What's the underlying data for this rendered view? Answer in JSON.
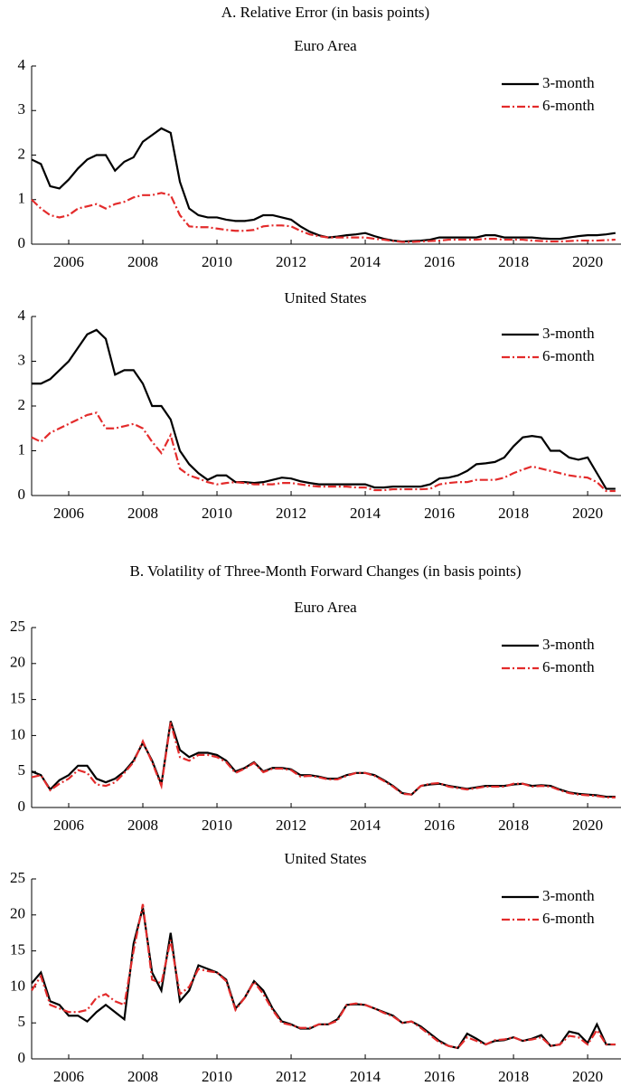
{
  "sections": [
    {
      "title": "A. Relative Error (in basis points)"
    },
    {
      "title": "B. Volatility of Three-Month Forward Changes (in basis points)"
    }
  ],
  "chart_data": [
    {
      "type": "line",
      "title": "Euro Area",
      "x": [
        2005,
        2005.25,
        2005.5,
        2005.75,
        2006,
        2006.25,
        2006.5,
        2006.75,
        2007,
        2007.25,
        2007.5,
        2007.75,
        2008,
        2008.25,
        2008.5,
        2008.75,
        2009,
        2009.25,
        2009.5,
        2009.75,
        2010,
        2010.25,
        2010.5,
        2010.75,
        2011,
        2011.25,
        2011.5,
        2011.75,
        2012,
        2012.25,
        2012.5,
        2012.75,
        2013,
        2013.25,
        2013.5,
        2013.75,
        2014,
        2014.25,
        2014.5,
        2014.75,
        2015,
        2015.25,
        2015.5,
        2015.75,
        2016,
        2016.25,
        2016.5,
        2016.75,
        2017,
        2017.25,
        2017.5,
        2017.75,
        2018,
        2018.25,
        2018.5,
        2018.75,
        2019,
        2019.25,
        2019.5,
        2019.75,
        2020,
        2020.25,
        2020.5,
        2020.75
      ],
      "series": [
        {
          "name": "3-month",
          "color": "#000000",
          "dash": "solid",
          "values": [
            1.9,
            1.8,
            1.3,
            1.25,
            1.45,
            1.7,
            1.9,
            2.0,
            2.0,
            1.65,
            1.85,
            1.95,
            2.3,
            2.45,
            2.6,
            2.5,
            1.4,
            0.8,
            0.65,
            0.6,
            0.6,
            0.55,
            0.52,
            0.52,
            0.55,
            0.65,
            0.65,
            0.6,
            0.55,
            0.4,
            0.28,
            0.2,
            0.15,
            0.17,
            0.2,
            0.22,
            0.25,
            0.18,
            0.12,
            0.08,
            0.06,
            0.07,
            0.08,
            0.1,
            0.15,
            0.15,
            0.15,
            0.15,
            0.15,
            0.2,
            0.2,
            0.15,
            0.15,
            0.15,
            0.15,
            0.13,
            0.12,
            0.12,
            0.15,
            0.18,
            0.2,
            0.2,
            0.22,
            0.25
          ]
        },
        {
          "name": "6-month",
          "color": "#e32b2b",
          "dash": "dashdot",
          "values": [
            1.0,
            0.8,
            0.65,
            0.6,
            0.65,
            0.8,
            0.85,
            0.9,
            0.8,
            0.9,
            0.95,
            1.05,
            1.1,
            1.1,
            1.15,
            1.1,
            0.65,
            0.4,
            0.38,
            0.38,
            0.35,
            0.32,
            0.3,
            0.3,
            0.32,
            0.4,
            0.42,
            0.42,
            0.4,
            0.3,
            0.22,
            0.18,
            0.15,
            0.15,
            0.15,
            0.15,
            0.15,
            0.12,
            0.1,
            0.07,
            0.05,
            0.05,
            0.06,
            0.07,
            0.08,
            0.1,
            0.1,
            0.1,
            0.1,
            0.12,
            0.12,
            0.1,
            0.1,
            0.1,
            0.08,
            0.07,
            0.06,
            0.06,
            0.07,
            0.08,
            0.08,
            0.08,
            0.09,
            0.1
          ]
        }
      ],
      "xlim": [
        2005,
        2020.9
      ],
      "xticks": [
        2006,
        2008,
        2010,
        2012,
        2014,
        2016,
        2018,
        2020
      ],
      "ylim": [
        0,
        4
      ],
      "yticks": [
        0,
        1,
        2,
        3,
        4
      ],
      "legend": "upper right"
    },
    {
      "type": "line",
      "title": "United States",
      "x": [
        2005,
        2005.25,
        2005.5,
        2005.75,
        2006,
        2006.25,
        2006.5,
        2006.75,
        2007,
        2007.25,
        2007.5,
        2007.75,
        2008,
        2008.25,
        2008.5,
        2008.75,
        2009,
        2009.25,
        2009.5,
        2009.75,
        2010,
        2010.25,
        2010.5,
        2010.75,
        2011,
        2011.25,
        2011.5,
        2011.75,
        2012,
        2012.25,
        2012.5,
        2012.75,
        2013,
        2013.25,
        2013.5,
        2013.75,
        2014,
        2014.25,
        2014.5,
        2014.75,
        2015,
        2015.25,
        2015.5,
        2015.75,
        2016,
        2016.25,
        2016.5,
        2016.75,
        2017,
        2017.25,
        2017.5,
        2017.75,
        2018,
        2018.25,
        2018.5,
        2018.75,
        2019,
        2019.25,
        2019.5,
        2019.75,
        2020,
        2020.25,
        2020.5,
        2020.75
      ],
      "series": [
        {
          "name": "3-month",
          "color": "#000000",
          "dash": "solid",
          "values": [
            2.5,
            2.5,
            2.6,
            2.8,
            3.0,
            3.3,
            3.6,
            3.7,
            3.5,
            2.7,
            2.8,
            2.8,
            2.5,
            2.0,
            2.0,
            1.7,
            1.0,
            0.7,
            0.5,
            0.35,
            0.45,
            0.45,
            0.3,
            0.3,
            0.28,
            0.3,
            0.35,
            0.4,
            0.38,
            0.32,
            0.28,
            0.25,
            0.25,
            0.25,
            0.25,
            0.25,
            0.25,
            0.18,
            0.18,
            0.2,
            0.2,
            0.2,
            0.2,
            0.25,
            0.38,
            0.4,
            0.45,
            0.55,
            0.7,
            0.72,
            0.75,
            0.85,
            1.1,
            1.3,
            1.33,
            1.3,
            1.0,
            1.0,
            0.85,
            0.8,
            0.85,
            0.5,
            0.15,
            0.15
          ]
        },
        {
          "name": "6-month",
          "color": "#e32b2b",
          "dash": "dashdot",
          "values": [
            1.3,
            1.2,
            1.4,
            1.5,
            1.6,
            1.7,
            1.8,
            1.85,
            1.5,
            1.5,
            1.55,
            1.6,
            1.5,
            1.2,
            0.95,
            1.35,
            0.6,
            0.45,
            0.38,
            0.3,
            0.25,
            0.28,
            0.3,
            0.28,
            0.25,
            0.25,
            0.25,
            0.28,
            0.28,
            0.25,
            0.22,
            0.2,
            0.2,
            0.2,
            0.2,
            0.18,
            0.18,
            0.12,
            0.12,
            0.14,
            0.14,
            0.14,
            0.14,
            0.15,
            0.25,
            0.28,
            0.3,
            0.3,
            0.35,
            0.35,
            0.35,
            0.4,
            0.5,
            0.58,
            0.65,
            0.6,
            0.55,
            0.5,
            0.45,
            0.42,
            0.4,
            0.3,
            0.1,
            0.1
          ]
        }
      ],
      "xlim": [
        2005,
        2020.9
      ],
      "xticks": [
        2006,
        2008,
        2010,
        2012,
        2014,
        2016,
        2018,
        2020
      ],
      "ylim": [
        0,
        4
      ],
      "yticks": [
        0,
        1,
        2,
        3,
        4
      ],
      "legend": "upper right"
    },
    {
      "type": "line",
      "title": "Euro Area",
      "x": [
        2005,
        2005.25,
        2005.5,
        2005.75,
        2006,
        2006.25,
        2006.5,
        2006.75,
        2007,
        2007.25,
        2007.5,
        2007.75,
        2008,
        2008.25,
        2008.5,
        2008.75,
        2009,
        2009.25,
        2009.5,
        2009.75,
        2010,
        2010.25,
        2010.5,
        2010.75,
        2011,
        2011.25,
        2011.5,
        2011.75,
        2012,
        2012.25,
        2012.5,
        2012.75,
        2013,
        2013.25,
        2013.5,
        2013.75,
        2014,
        2014.25,
        2014.5,
        2014.75,
        2015,
        2015.25,
        2015.5,
        2015.75,
        2016,
        2016.25,
        2016.5,
        2016.75,
        2017,
        2017.25,
        2017.5,
        2017.75,
        2018,
        2018.25,
        2018.5,
        2018.75,
        2019,
        2019.25,
        2019.5,
        2019.75,
        2020,
        2020.25,
        2020.5,
        2020.75
      ],
      "series": [
        {
          "name": "3-month",
          "color": "#000000",
          "dash": "solid",
          "values": [
            5.0,
            4.5,
            2.5,
            3.8,
            4.5,
            5.8,
            5.8,
            4.0,
            3.5,
            4.0,
            5.0,
            6.5,
            9.0,
            6.5,
            3.2,
            12.0,
            8.0,
            7.0,
            7.6,
            7.6,
            7.3,
            6.5,
            5.0,
            5.5,
            6.3,
            5.0,
            5.5,
            5.5,
            5.3,
            4.5,
            4.5,
            4.3,
            4.0,
            4.0,
            4.5,
            4.8,
            4.8,
            4.5,
            3.8,
            3.0,
            2.0,
            1.8,
            3.0,
            3.2,
            3.3,
            3.0,
            2.8,
            2.6,
            2.8,
            3.0,
            3.0,
            3.0,
            3.2,
            3.3,
            3.0,
            3.1,
            3.0,
            2.5,
            2.1,
            1.9,
            1.8,
            1.7,
            1.5,
            1.5
          ]
        },
        {
          "name": "6-month",
          "color": "#e32b2b",
          "dash": "dashdot",
          "values": [
            4.2,
            4.5,
            2.4,
            3.3,
            4.0,
            5.2,
            4.8,
            3.2,
            3.0,
            3.5,
            4.8,
            6.3,
            9.2,
            6.3,
            3.0,
            11.8,
            7.0,
            6.5,
            7.3,
            7.3,
            7.0,
            6.3,
            4.8,
            5.4,
            6.2,
            4.9,
            5.4,
            5.4,
            5.2,
            4.3,
            4.4,
            4.2,
            3.9,
            3.9,
            4.4,
            4.8,
            4.8,
            4.4,
            3.7,
            2.9,
            1.9,
            1.8,
            3.0,
            3.3,
            3.4,
            2.9,
            2.7,
            2.5,
            2.7,
            2.9,
            2.9,
            2.9,
            3.3,
            3.3,
            2.9,
            3.0,
            2.9,
            2.4,
            2.0,
            1.8,
            1.7,
            1.6,
            1.4,
            1.4
          ]
        }
      ],
      "xlim": [
        2005,
        2020.9
      ],
      "xticks": [
        2006,
        2008,
        2010,
        2012,
        2014,
        2016,
        2018,
        2020
      ],
      "ylim": [
        0,
        25
      ],
      "yticks": [
        0,
        5,
        10,
        15,
        20,
        25
      ],
      "legend": "upper right"
    },
    {
      "type": "line",
      "title": "United States",
      "x": [
        2005,
        2005.25,
        2005.5,
        2005.75,
        2006,
        2006.25,
        2006.5,
        2006.75,
        2007,
        2007.25,
        2007.5,
        2007.75,
        2008,
        2008.25,
        2008.5,
        2008.75,
        2009,
        2009.25,
        2009.5,
        2009.75,
        2010,
        2010.25,
        2010.5,
        2010.75,
        2011,
        2011.25,
        2011.5,
        2011.75,
        2012,
        2012.25,
        2012.5,
        2012.75,
        2013,
        2013.25,
        2013.5,
        2013.75,
        2014,
        2014.25,
        2014.5,
        2014.75,
        2015,
        2015.25,
        2015.5,
        2015.75,
        2016,
        2016.25,
        2016.5,
        2016.75,
        2017,
        2017.25,
        2017.5,
        2017.75,
        2018,
        2018.25,
        2018.5,
        2018.75,
        2019,
        2019.25,
        2019.5,
        2019.75,
        2020,
        2020.25,
        2020.5,
        2020.75
      ],
      "series": [
        {
          "name": "3-month",
          "color": "#000000",
          "dash": "solid",
          "values": [
            10.5,
            12.0,
            8.0,
            7.5,
            6.0,
            6.0,
            5.2,
            6.5,
            7.5,
            6.5,
            5.5,
            16.0,
            21.0,
            12.0,
            9.5,
            17.5,
            8.0,
            9.5,
            13.0,
            12.5,
            12.0,
            11.0,
            7.0,
            8.5,
            10.8,
            9.5,
            7.0,
            5.2,
            4.8,
            4.2,
            4.2,
            4.8,
            4.8,
            5.5,
            7.5,
            7.6,
            7.5,
            7.0,
            6.5,
            6.0,
            5.0,
            5.2,
            4.5,
            3.5,
            2.5,
            1.8,
            1.5,
            3.5,
            2.8,
            2.0,
            2.5,
            2.6,
            3.0,
            2.5,
            2.8,
            3.3,
            1.8,
            2.0,
            3.8,
            3.5,
            2.2,
            4.8,
            2.0,
            2.0
          ]
        },
        {
          "name": "6-month",
          "color": "#e32b2b",
          "dash": "dashdot",
          "values": [
            9.5,
            11.5,
            7.5,
            7.0,
            6.5,
            6.5,
            6.8,
            8.5,
            9.0,
            8.0,
            7.5,
            15.0,
            21.5,
            11.0,
            10.5,
            16.5,
            9.0,
            10.0,
            12.5,
            12.2,
            12.0,
            10.8,
            6.8,
            8.5,
            10.7,
            9.0,
            6.8,
            5.0,
            4.7,
            4.3,
            4.3,
            4.8,
            4.8,
            5.3,
            7.5,
            7.7,
            7.5,
            7.0,
            6.4,
            5.9,
            5.0,
            5.2,
            4.3,
            3.3,
            2.3,
            1.8,
            1.5,
            3.0,
            2.5,
            2.0,
            2.6,
            2.7,
            3.0,
            2.5,
            2.7,
            3.0,
            1.8,
            2.0,
            3.2,
            3.0,
            2.0,
            4.0,
            2.0,
            2.0
          ]
        }
      ],
      "xlim": [
        2005,
        2020.9
      ],
      "xticks": [
        2006,
        2008,
        2010,
        2012,
        2014,
        2016,
        2018,
        2020
      ],
      "ylim": [
        0,
        25
      ],
      "yticks": [
        0,
        5,
        10,
        15,
        20,
        25
      ],
      "legend": "upper right"
    }
  ]
}
